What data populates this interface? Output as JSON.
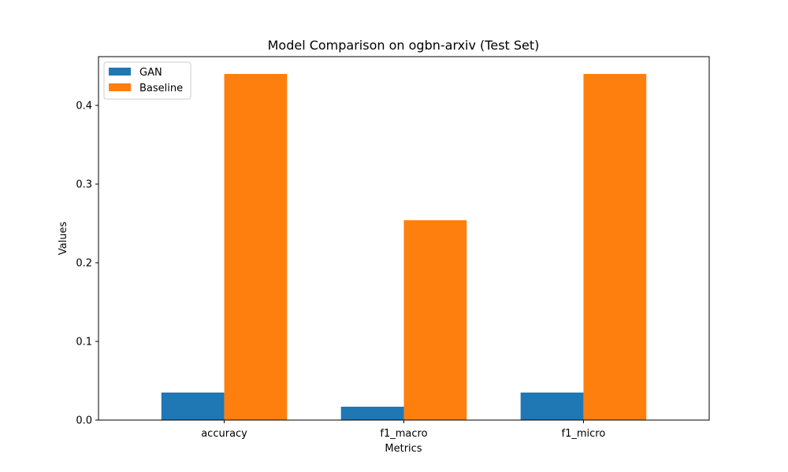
{
  "chart_data": {
    "type": "bar",
    "title": "Model Comparison on ogbn-arxiv (Test Set)",
    "xlabel": "Metrics",
    "ylabel": "Values",
    "categories": [
      "accuracy",
      "f1_macro",
      "f1_micro"
    ],
    "series": [
      {
        "name": "GAN",
        "values": [
          0.035,
          0.017,
          0.035
        ],
        "color": "#1f77b4"
      },
      {
        "name": "Baseline",
        "values": [
          0.44,
          0.254,
          0.44
        ],
        "color": "#ff7f0e"
      }
    ],
    "ylim": [
      0,
      0.462
    ],
    "yticks": [
      "0.0",
      "0.1",
      "0.2",
      "0.3",
      "0.4"
    ],
    "grid": false,
    "legend_position": "top-left"
  }
}
